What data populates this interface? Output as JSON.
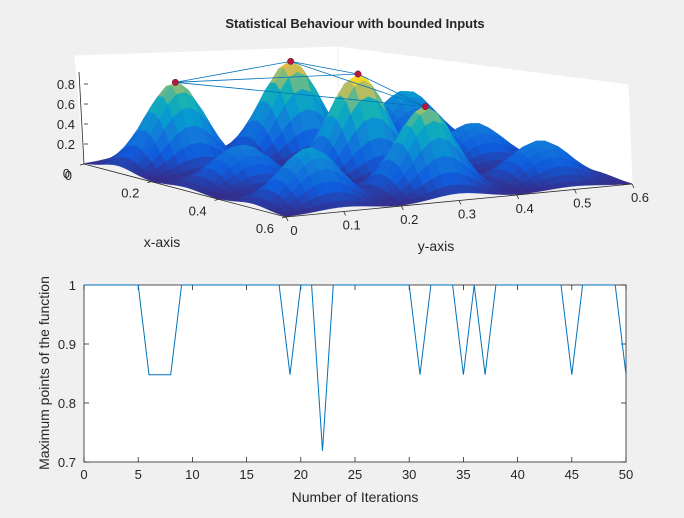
{
  "figure": {
    "background": "#f0f0f0"
  },
  "chart_data": [
    {
      "type": "surface",
      "title": "Statistical Behaviour with bounded Inputs",
      "xlabel": "x-axis",
      "ylabel": "y-axis",
      "x_ticks": [
        "0",
        "0.2",
        "0.4",
        "0.6"
      ],
      "y_ticks": [
        "0",
        "0.1",
        "0.2",
        "0.3",
        "0.4",
        "0.5",
        "0.6"
      ],
      "z_ticks": [
        "0.2",
        "0.4",
        "0.6",
        "0.8"
      ],
      "xlim": [
        0,
        0.6
      ],
      "ylim": [
        0,
        0.6
      ],
      "zlim": [
        0,
        1
      ],
      "colormap": "parula",
      "peaks": [
        {
          "x": 0.1,
          "y": 0.1,
          "z": 0.85
        },
        {
          "x": 0.1,
          "y": 0.3,
          "z": 0.95
        },
        {
          "x": 0.1,
          "y": 0.5,
          "z": 0.55
        },
        {
          "x": 0.3,
          "y": 0.1,
          "z": 0.4
        },
        {
          "x": 0.3,
          "y": 0.3,
          "z": 1.0
        },
        {
          "x": 0.3,
          "y": 0.5,
          "z": 0.4
        },
        {
          "x": 0.5,
          "y": 0.1,
          "z": 0.55
        },
        {
          "x": 0.5,
          "y": 0.3,
          "z": 0.85
        },
        {
          "x": 0.5,
          "y": 0.5,
          "z": 0.4
        }
      ],
      "marked_points": [
        {
          "x": 0.3,
          "y": 0.3,
          "z": 1.0
        },
        {
          "x": 0.1,
          "y": 0.3,
          "z": 0.95
        },
        {
          "x": 0.1,
          "y": 0.1,
          "z": 0.85
        },
        {
          "x": 0.5,
          "y": 0.3,
          "z": 0.85
        }
      ],
      "marker_color": "#c0143c",
      "line_color": "#0072bd"
    },
    {
      "type": "line",
      "title": "",
      "xlabel": "Number of Iterations",
      "ylabel": "Maximum points of the function",
      "xlim": [
        0,
        50
      ],
      "ylim": [
        0.7,
        1
      ],
      "x_ticks": [
        "0",
        "5",
        "10",
        "15",
        "20",
        "25",
        "30",
        "35",
        "40",
        "45",
        "50"
      ],
      "y_ticks": [
        "0.7",
        "0.8",
        "0.9",
        "1"
      ],
      "color": "#0072bd",
      "x": [
        0,
        1,
        2,
        3,
        4,
        5,
        6,
        7,
        8,
        9,
        10,
        11,
        12,
        13,
        14,
        15,
        16,
        17,
        18,
        19,
        20,
        21,
        22,
        23,
        24,
        25,
        26,
        27,
        28,
        29,
        30,
        31,
        32,
        33,
        34,
        35,
        36,
        37,
        38,
        39,
        40,
        41,
        42,
        43,
        44,
        45,
        46,
        47,
        48,
        49,
        50
      ],
      "y": [
        1,
        1,
        1,
        1,
        1,
        1,
        0.848,
        0.848,
        0.848,
        1,
        1,
        1,
        1,
        1,
        1,
        1,
        1,
        1,
        1,
        0.848,
        1,
        1,
        0.719,
        1,
        1,
        1,
        1,
        1,
        1,
        1,
        1,
        0.848,
        1,
        1,
        1,
        0.848,
        1,
        0.848,
        1,
        1,
        1,
        1,
        1,
        1,
        1,
        0.848,
        1,
        1,
        1,
        1,
        0.848
      ]
    }
  ]
}
